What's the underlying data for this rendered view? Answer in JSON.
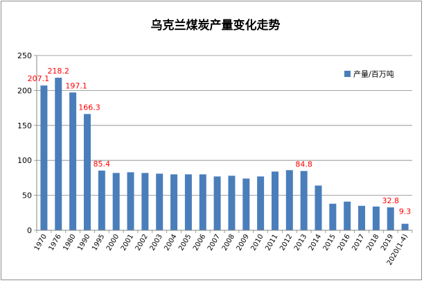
{
  "chart_data": {
    "type": "bar",
    "title": "乌克兰煤炭产量变化走势",
    "xlabel": "",
    "ylabel": "",
    "ylim": [
      0,
      250
    ],
    "yticks": [
      0,
      50,
      100,
      150,
      200,
      250
    ],
    "grid": true,
    "legend_position": "right",
    "categories": [
      "1970",
      "1976",
      "1980",
      "1990",
      "1995",
      "2000",
      "2001",
      "2002",
      "2003",
      "2004",
      "2005",
      "2006",
      "2007",
      "2008",
      "2009",
      "2010",
      "2011",
      "2012",
      "2013",
      "2014",
      "2015",
      "2016",
      "2017",
      "2018",
      "2019",
      "2020(1-4)"
    ],
    "series": [
      {
        "name": "产量/百万吨",
        "values": [
          207.1,
          218.2,
          197.1,
          166.3,
          85.4,
          82,
          83,
          82,
          81,
          80,
          80,
          80,
          77,
          78,
          74,
          77,
          84,
          86,
          84.8,
          64,
          38,
          41,
          35,
          34,
          32.8,
          9.3
        ]
      }
    ],
    "data_labels": [
      {
        "index": 0,
        "text": "207.1"
      },
      {
        "index": 1,
        "text": "218.2"
      },
      {
        "index": 2,
        "text": "197.1"
      },
      {
        "index": 3,
        "text": "166.3"
      },
      {
        "index": 4,
        "text": "85.4"
      },
      {
        "index": 18,
        "text": "84.8"
      },
      {
        "index": 24,
        "text": "32.8"
      },
      {
        "index": 25,
        "text": "9.3"
      }
    ],
    "colors": {
      "bar": "#4a7ebb",
      "data_label": "#ff0000",
      "grid": "#868686",
      "axis_text": "#000000"
    }
  }
}
